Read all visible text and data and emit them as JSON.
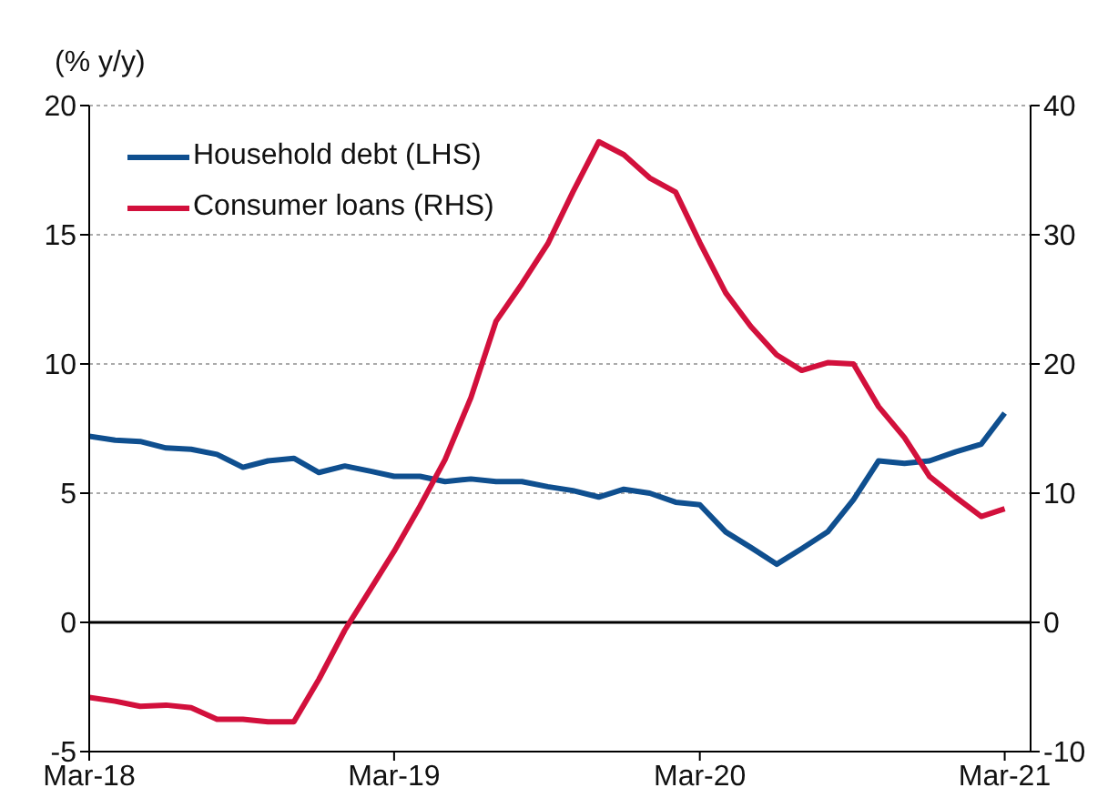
{
  "chart_data": {
    "type": "line",
    "ylabel": "(% y/y)",
    "x": [
      "2018-03",
      "2018-04",
      "2018-05",
      "2018-06",
      "2018-07",
      "2018-08",
      "2018-09",
      "2018-10",
      "2018-11",
      "2018-12",
      "2019-01",
      "2019-02",
      "2019-03",
      "2019-04",
      "2019-05",
      "2019-06",
      "2019-07",
      "2019-08",
      "2019-09",
      "2019-10",
      "2019-11",
      "2019-12",
      "2020-01",
      "2020-02",
      "2020-03",
      "2020-04",
      "2020-05",
      "2020-06",
      "2020-07",
      "2020-08",
      "2020-09",
      "2020-10",
      "2020-11",
      "2020-12",
      "2021-01",
      "2021-02",
      "2021-03"
    ],
    "series": [
      {
        "name": "Household debt (LHS)",
        "color": "#0f4f8f",
        "axis": "y",
        "values": [
          7.2,
          7.05,
          7.0,
          6.75,
          6.7,
          6.5,
          6.0,
          6.25,
          6.35,
          5.8,
          6.05,
          5.85,
          5.65,
          5.65,
          5.45,
          5.55,
          5.45,
          5.45,
          5.25,
          5.1,
          4.85,
          5.15,
          5.0,
          4.65,
          4.55,
          3.5,
          2.9,
          2.25,
          2.85,
          3.5,
          4.75,
          6.25,
          6.15,
          6.25,
          6.6,
          6.9,
          8.1
        ]
      },
      {
        "name": "Consumer loans (RHS)",
        "color": "#d2103c",
        "axis": "y2",
        "values": [
          -5.8,
          -6.1,
          -6.5,
          -6.4,
          -6.6,
          -7.5,
          -7.5,
          -7.7,
          -7.7,
          -4.4,
          -0.6,
          2.6,
          5.5,
          9.0,
          12.6,
          17.4,
          23.3,
          26.2,
          29.3,
          33.3,
          37.2,
          36.2,
          34.4,
          33.3,
          29.4,
          25.5,
          22.9,
          20.7,
          19.5,
          20.1,
          20.0,
          16.7,
          14.3,
          11.3,
          9.7,
          8.2,
          8.8
        ]
      }
    ],
    "xlim": [
      "2018-03",
      "2021-04"
    ],
    "xticks": [
      {
        "value": "2018-03",
        "label": "Mar-18"
      },
      {
        "value": "2019-03",
        "label": "Mar-19"
      },
      {
        "value": "2020-03",
        "label": "Mar-20"
      },
      {
        "value": "2021-03",
        "label": "Mar-21"
      }
    ],
    "ylim": [
      -5,
      20
    ],
    "yticks": [
      -5,
      0,
      5,
      10,
      15,
      20
    ],
    "y2lim": [
      -10,
      40
    ],
    "y2ticks": [
      -10,
      0,
      10,
      20,
      30,
      40
    ],
    "ref_lines": [
      {
        "axis": "y",
        "value": 0,
        "color": "#000000"
      }
    ],
    "grid": "y",
    "legend": "top left"
  }
}
